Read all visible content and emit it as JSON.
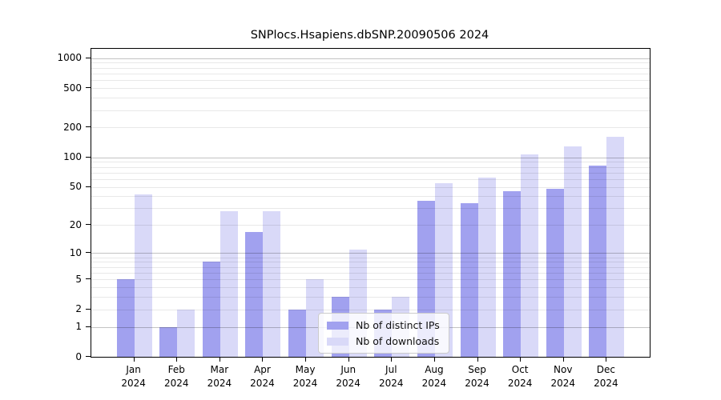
{
  "chart_data": {
    "type": "bar",
    "title": "SNPlocs.Hsapiens.dbSNP.20090506 2024",
    "categories": [
      "Jan",
      "Feb",
      "Mar",
      "Apr",
      "May",
      "Jun",
      "Jul",
      "Aug",
      "Sep",
      "Oct",
      "Nov",
      "Dec"
    ],
    "category_year": "2024",
    "series": [
      {
        "name": "Nb of distinct IPs",
        "color": "#a1a1ef",
        "values": [
          5,
          1,
          8,
          17,
          2,
          3,
          2,
          36,
          34,
          45,
          48,
          83
        ]
      },
      {
        "name": "Nb of downloads",
        "color": "#d9d9f8",
        "values": [
          42,
          2,
          28,
          28,
          5,
          11,
          3,
          54,
          62,
          107,
          128,
          162
        ]
      }
    ],
    "yticks": [
      0,
      1,
      2,
      5,
      10,
      20,
      50,
      100,
      200,
      500,
      1000
    ],
    "ylim": [
      0,
      1240
    ],
    "yscale": "log1p",
    "grid": "both",
    "legend_position": "lower-center-inside"
  }
}
